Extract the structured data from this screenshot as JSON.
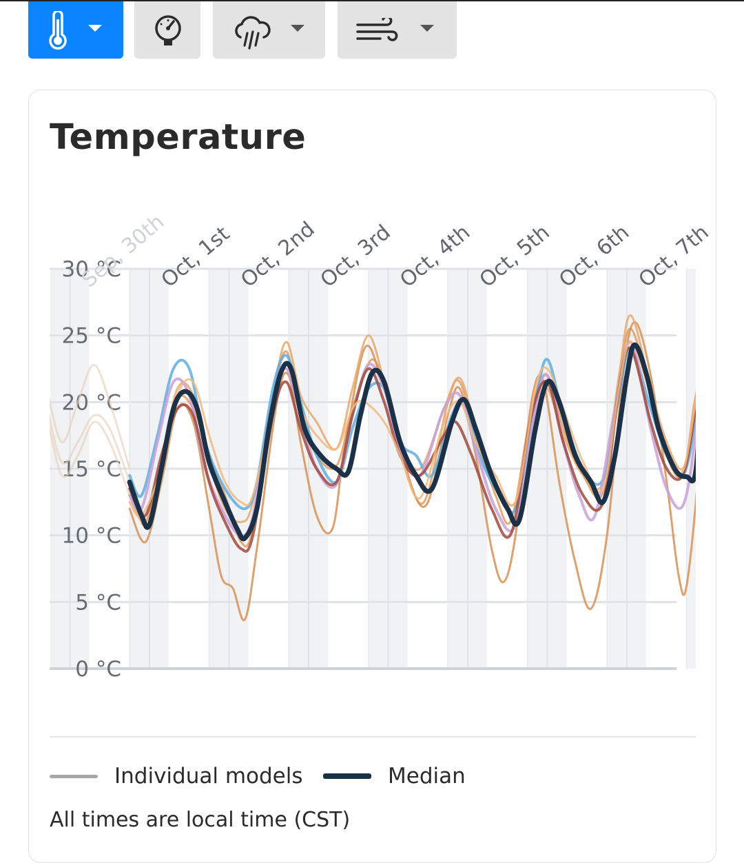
{
  "toolbar": {
    "buttons": [
      {
        "icon": "thermometer-icon",
        "has_dropdown": true,
        "active": true
      },
      {
        "icon": "gauge-icon",
        "has_dropdown": false,
        "active": false
      },
      {
        "icon": "rain-cloud-icon",
        "has_dropdown": true,
        "active": false
      },
      {
        "icon": "wind-icon",
        "has_dropdown": true,
        "active": false
      }
    ],
    "active_color": "#0a84ff",
    "inactive_color": "#e3e3e3"
  },
  "card": {
    "title": "Temperature",
    "legend": {
      "individual_label": "Individual models",
      "individual_color": "#a7a7a7",
      "median_label": "Median",
      "median_color": "#1a3148"
    },
    "footnote": "All times are local time (CST)"
  },
  "chart_data": {
    "type": "line",
    "title": "Temperature",
    "ylabel": "",
    "xlabel": "",
    "ylim": [
      0,
      30
    ],
    "xlim": [
      -1.5,
      7.0
    ],
    "y_ticks": [
      0,
      5,
      10,
      15,
      20,
      25,
      30
    ],
    "y_tick_labels": [
      "0 °C",
      "5 °C",
      "10 °C",
      "15 °C",
      "20 °C",
      "25 °C",
      "30 °C"
    ],
    "x_ticks": [
      -1,
      0,
      1,
      2,
      3,
      4,
      5,
      6
    ],
    "x_tick_labels": [
      "Sep, 30th",
      "Oct, 1st",
      "Oct, 2nd",
      "Oct, 3rd",
      "Oct, 4th",
      "Oct, 5th",
      "Oct, 6th",
      "Oct, 7th"
    ],
    "x_unit": "days from Oct 1st",
    "grid": true,
    "legend_position": "bottom",
    "series": [
      {
        "color": "#e39c5a",
        "width": 3,
        "points": [
          [
            -0.25,
            14
          ],
          [
            -0.15,
            12.2
          ],
          [
            -0.05,
            10.9
          ],
          [
            0.15,
            15.5
          ],
          [
            0.35,
            20.2
          ],
          [
            0.55,
            19.5
          ],
          [
            0.75,
            16
          ],
          [
            0.95,
            13
          ],
          [
            1.15,
            9.5
          ],
          [
            1.3,
            10.5
          ],
          [
            1.55,
            20
          ],
          [
            1.72,
            23.8
          ],
          [
            1.9,
            19
          ],
          [
            2.1,
            16
          ],
          [
            2.35,
            15.2
          ],
          [
            2.55,
            19.5
          ],
          [
            2.8,
            23.2
          ],
          [
            3.0,
            20
          ],
          [
            3.2,
            15.5
          ],
          [
            3.45,
            12.5
          ],
          [
            3.75,
            20
          ],
          [
            3.9,
            21.5
          ],
          [
            4.1,
            17.5
          ],
          [
            4.35,
            13
          ],
          [
            4.55,
            11.2
          ],
          [
            4.8,
            19.5
          ],
          [
            5.0,
            22
          ],
          [
            5.2,
            18
          ],
          [
            5.45,
            14.5
          ],
          [
            5.7,
            13.2
          ],
          [
            5.9,
            21.5
          ],
          [
            6.05,
            25.5
          ],
          [
            6.3,
            20.5
          ],
          [
            6.5,
            16
          ],
          [
            6.7,
            14.5
          ],
          [
            6.85,
            20
          ],
          [
            6.97,
            23.5
          ]
        ]
      },
      {
        "color": "#d99152",
        "width": 3,
        "points": [
          [
            -0.25,
            12
          ],
          [
            -0.05,
            9.5
          ],
          [
            0.15,
            14
          ],
          [
            0.35,
            19.5
          ],
          [
            0.55,
            18.5
          ],
          [
            0.75,
            12
          ],
          [
            0.9,
            7
          ],
          [
            1.05,
            6
          ],
          [
            1.2,
            3.7
          ],
          [
            1.35,
            9
          ],
          [
            1.6,
            20
          ],
          [
            1.75,
            22
          ],
          [
            1.9,
            17
          ],
          [
            2.1,
            11.5
          ],
          [
            2.3,
            10.5
          ],
          [
            2.45,
            16.5
          ],
          [
            2.7,
            24
          ],
          [
            2.9,
            22
          ],
          [
            3.1,
            18
          ],
          [
            3.3,
            13.5
          ],
          [
            3.5,
            12.5
          ],
          [
            3.75,
            19
          ],
          [
            3.9,
            21
          ],
          [
            4.1,
            16
          ],
          [
            4.3,
            9
          ],
          [
            4.45,
            6.5
          ],
          [
            4.6,
            10
          ],
          [
            4.8,
            20
          ],
          [
            4.95,
            21.5
          ],
          [
            5.15,
            14
          ],
          [
            5.35,
            8
          ],
          [
            5.55,
            4.5
          ],
          [
            5.75,
            10
          ],
          [
            5.95,
            22
          ],
          [
            6.1,
            26
          ],
          [
            6.3,
            22
          ],
          [
            6.5,
            14
          ],
          [
            6.65,
            7
          ],
          [
            6.75,
            6.2
          ],
          [
            6.9,
            15
          ],
          [
            6.97,
            24.5
          ]
        ]
      },
      {
        "color": "#e8a86a",
        "width": 3,
        "points": [
          [
            -0.25,
            13
          ],
          [
            -0.05,
            11
          ],
          [
            0.15,
            15.5
          ],
          [
            0.35,
            21
          ],
          [
            0.55,
            20.5
          ],
          [
            0.75,
            15.5
          ],
          [
            0.95,
            12
          ],
          [
            1.15,
            11
          ],
          [
            1.3,
            12.5
          ],
          [
            1.55,
            20.5
          ],
          [
            1.72,
            24.5
          ],
          [
            1.9,
            20.5
          ],
          [
            2.1,
            18.5
          ],
          [
            2.35,
            16.5
          ],
          [
            2.55,
            21
          ],
          [
            2.75,
            25
          ],
          [
            2.95,
            21.5
          ],
          [
            3.15,
            17
          ],
          [
            3.4,
            15
          ],
          [
            3.7,
            19.5
          ],
          [
            3.9,
            21.8
          ],
          [
            4.1,
            18
          ],
          [
            4.35,
            14
          ],
          [
            4.6,
            12.5
          ],
          [
            4.85,
            19
          ],
          [
            5.0,
            21
          ],
          [
            5.2,
            17.5
          ],
          [
            5.45,
            14.5
          ],
          [
            5.7,
            14
          ],
          [
            5.9,
            22
          ],
          [
            6.05,
            26.5
          ],
          [
            6.3,
            21
          ],
          [
            6.5,
            17
          ],
          [
            6.7,
            15
          ],
          [
            6.85,
            19
          ],
          [
            6.97,
            24
          ]
        ]
      },
      {
        "color": "#5eaee0",
        "width": 4,
        "points": [
          [
            -0.25,
            14.5
          ],
          [
            -0.1,
            13
          ],
          [
            0.1,
            17.5
          ],
          [
            0.3,
            22.5
          ],
          [
            0.5,
            22.5
          ],
          [
            0.7,
            17
          ],
          [
            0.95,
            13.5
          ],
          [
            1.2,
            12
          ],
          [
            1.35,
            14
          ],
          [
            1.55,
            21
          ],
          [
            1.72,
            23.5
          ],
          [
            1.9,
            20
          ],
          [
            2.1,
            16
          ],
          [
            2.35,
            14
          ],
          [
            2.55,
            18
          ],
          [
            2.75,
            21
          ],
          [
            2.95,
            21
          ],
          [
            3.15,
            17
          ],
          [
            3.35,
            16
          ],
          [
            3.55,
            14.5
          ],
          [
            3.8,
            19
          ],
          [
            3.95,
            20
          ],
          [
            4.15,
            16
          ],
          [
            4.35,
            13.5
          ],
          [
            4.6,
            12
          ],
          [
            4.85,
            20
          ],
          [
            5.0,
            23.2
          ],
          [
            5.2,
            19
          ],
          [
            5.45,
            15
          ],
          [
            5.7,
            14.2
          ],
          [
            5.9,
            20.5
          ],
          [
            6.05,
            24
          ],
          [
            6.3,
            19.5
          ],
          [
            6.5,
            16
          ],
          [
            6.7,
            14.5
          ],
          [
            6.85,
            18
          ],
          [
            6.97,
            23
          ]
        ]
      },
      {
        "color": "#c8a0d8",
        "width": 4,
        "points": [
          [
            -0.25,
            13
          ],
          [
            -0.1,
            12
          ],
          [
            0.1,
            17
          ],
          [
            0.3,
            21.5
          ],
          [
            0.5,
            20.5
          ],
          [
            0.7,
            15
          ],
          [
            0.95,
            11.5
          ],
          [
            1.15,
            10
          ],
          [
            1.3,
            11.5
          ],
          [
            1.55,
            20
          ],
          [
            1.72,
            22.5
          ],
          [
            1.9,
            19
          ],
          [
            2.1,
            15
          ],
          [
            2.35,
            13.8
          ],
          [
            2.55,
            19
          ],
          [
            2.75,
            22.8
          ],
          [
            2.95,
            21
          ],
          [
            3.15,
            16.5
          ],
          [
            3.4,
            14.5
          ],
          [
            3.7,
            19.5
          ],
          [
            3.9,
            20.5
          ],
          [
            4.1,
            16.5
          ],
          [
            4.35,
            12
          ],
          [
            4.6,
            10.8
          ],
          [
            4.85,
            19.5
          ],
          [
            5.0,
            22
          ],
          [
            5.2,
            17
          ],
          [
            5.4,
            13
          ],
          [
            5.6,
            11.5
          ],
          [
            5.85,
            19.5
          ],
          [
            6.05,
            24.5
          ],
          [
            6.3,
            18
          ],
          [
            6.5,
            13.5
          ],
          [
            6.7,
            12.2
          ],
          [
            6.85,
            17
          ],
          [
            6.97,
            25.5
          ]
        ]
      },
      {
        "color": "#a24a3c",
        "width": 4,
        "points": [
          [
            -0.25,
            13.5
          ],
          [
            -0.05,
            11.5
          ],
          [
            0.15,
            16
          ],
          [
            0.35,
            19.5
          ],
          [
            0.55,
            19
          ],
          [
            0.75,
            14
          ],
          [
            0.95,
            11
          ],
          [
            1.15,
            9
          ],
          [
            1.3,
            10
          ],
          [
            1.55,
            19
          ],
          [
            1.72,
            21.5
          ],
          [
            1.9,
            18
          ],
          [
            2.1,
            15
          ],
          [
            2.35,
            14
          ],
          [
            2.55,
            19
          ],
          [
            2.75,
            22.5
          ],
          [
            2.95,
            20
          ],
          [
            3.15,
            16
          ],
          [
            3.4,
            14.5
          ],
          [
            3.7,
            17.5
          ],
          [
            3.85,
            18.5
          ],
          [
            4.05,
            16
          ],
          [
            4.3,
            12
          ],
          [
            4.55,
            10.2
          ],
          [
            4.8,
            19
          ],
          [
            5.0,
            21.5
          ],
          [
            5.2,
            17
          ],
          [
            5.45,
            13
          ],
          [
            5.7,
            12.5
          ],
          [
            5.9,
            21
          ],
          [
            6.05,
            24
          ],
          [
            6.3,
            18.5
          ],
          [
            6.5,
            15
          ],
          [
            6.7,
            14.5
          ],
          [
            6.85,
            19
          ],
          [
            6.97,
            24.5
          ]
        ]
      },
      {
        "color": "#f2b980",
        "width": 3,
        "points": [
          [
            -0.25,
            12.5
          ],
          [
            -0.1,
            11.5
          ],
          [
            0.15,
            15
          ],
          [
            0.35,
            20.5
          ],
          [
            0.55,
            21.5
          ],
          [
            0.75,
            17.5
          ],
          [
            0.95,
            14
          ],
          [
            1.15,
            12.5
          ],
          [
            1.3,
            13
          ],
          [
            1.55,
            19.5
          ],
          [
            1.72,
            23
          ],
          [
            1.9,
            19.5
          ],
          [
            2.1,
            17.5
          ],
          [
            2.35,
            16.5
          ],
          [
            2.55,
            19.5
          ],
          [
            2.7,
            20
          ],
          [
            2.95,
            18.5
          ],
          [
            3.15,
            16
          ],
          [
            3.4,
            12.8
          ],
          [
            3.7,
            18.5
          ],
          [
            3.9,
            20
          ],
          [
            4.1,
            17
          ],
          [
            4.35,
            14.5
          ],
          [
            4.6,
            12.5
          ],
          [
            4.85,
            21
          ],
          [
            5.0,
            22.5
          ],
          [
            5.2,
            19.5
          ],
          [
            5.45,
            15.5
          ],
          [
            5.7,
            13.5
          ],
          [
            5.9,
            21
          ],
          [
            6.05,
            24.5
          ],
          [
            6.3,
            20.5
          ],
          [
            6.5,
            16.5
          ],
          [
            6.7,
            14.8
          ],
          [
            6.85,
            19.5
          ],
          [
            6.97,
            24
          ]
        ]
      }
    ],
    "median": {
      "color": "#1a3148",
      "width": 7,
      "points": [
        [
          -0.25,
          14
        ],
        [
          -0.1,
          11.5
        ],
        [
          0.0,
          10.8
        ],
        [
          0.15,
          15
        ],
        [
          0.3,
          19.5
        ],
        [
          0.45,
          20.8
        ],
        [
          0.6,
          19.5
        ],
        [
          0.75,
          15.5
        ],
        [
          0.95,
          12.5
        ],
        [
          1.1,
          10.5
        ],
        [
          1.2,
          9.8
        ],
        [
          1.35,
          12
        ],
        [
          1.5,
          18
        ],
        [
          1.65,
          22.2
        ],
        [
          1.78,
          22.5
        ],
        [
          1.95,
          18
        ],
        [
          2.15,
          16
        ],
        [
          2.35,
          15
        ],
        [
          2.5,
          14.8
        ],
        [
          2.65,
          19
        ],
        [
          2.8,
          22.2
        ],
        [
          2.95,
          21.5
        ],
        [
          3.15,
          17
        ],
        [
          3.35,
          14.5
        ],
        [
          3.55,
          13.5
        ],
        [
          3.8,
          18.5
        ],
        [
          3.95,
          20.2
        ],
        [
          4.1,
          18
        ],
        [
          4.3,
          14.5
        ],
        [
          4.5,
          12
        ],
        [
          4.65,
          11.2
        ],
        [
          4.85,
          18
        ],
        [
          5.0,
          21.5
        ],
        [
          5.15,
          20
        ],
        [
          5.35,
          16
        ],
        [
          5.55,
          14
        ],
        [
          5.7,
          12.5
        ],
        [
          5.85,
          16
        ],
        [
          6.0,
          22
        ],
        [
          6.1,
          24.3
        ],
        [
          6.25,
          22
        ],
        [
          6.4,
          18
        ],
        [
          6.6,
          15
        ],
        [
          6.75,
          14.4
        ],
        [
          6.87,
          15
        ],
        [
          6.97,
          24.2
        ]
      ]
    }
  }
}
